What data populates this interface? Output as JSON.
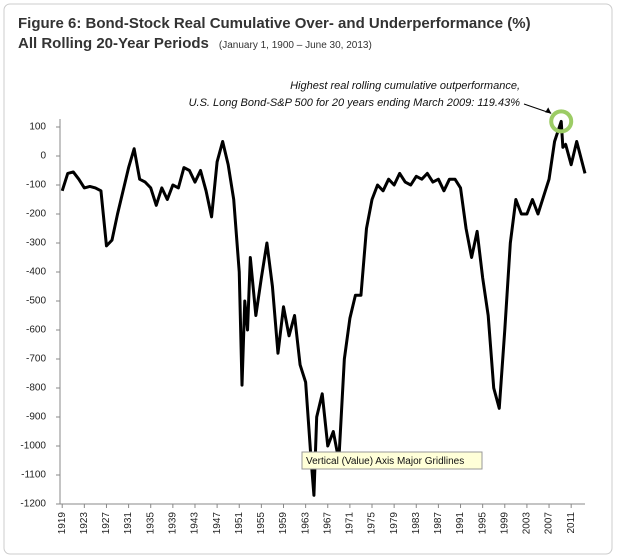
{
  "chart_data": {
    "type": "line",
    "title": "Figure 6: Bond-Stock Real Cumulative Over- and Underperformance (%)",
    "title_line2": "All Rolling 20-Year Periods",
    "subtitle": "(January 1, 1900 – June 30, 2013)",
    "annotation": [
      "Highest real rolling cumulative outperformance,",
      "U.S. Long Bond-S&P 500 for 20 years ending March 2009: 119.43%"
    ],
    "tooltip": "Vertical (Value) Axis Major Gridlines",
    "color": "#000000",
    "highlight_color": "#9ccc65",
    "x": [
      1919,
      1920,
      1921,
      1922,
      1923,
      1924,
      1925,
      1926,
      1927,
      1928,
      1929,
      1930,
      1931,
      1932,
      1933,
      1934,
      1935,
      1936,
      1937,
      1938,
      1939,
      1940,
      1941,
      1942,
      1943,
      1944,
      1945,
      1946,
      1947,
      1948,
      1949,
      1950,
      1951,
      1951.5,
      1952,
      1952.5,
      1953,
      1954,
      1955,
      1956,
      1957,
      1958,
      1959,
      1960,
      1961,
      1962,
      1963,
      1964,
      1964.5,
      1965,
      1966,
      1967,
      1968,
      1969,
      1970,
      1971,
      1972,
      1973,
      1974,
      1975,
      1976,
      1977,
      1978,
      1979,
      1980,
      1981,
      1982,
      1983,
      1984,
      1985,
      1986,
      1987,
      1988,
      1989,
      1990,
      1991,
      1992,
      1993,
      1994,
      1995,
      1996,
      1997,
      1998,
      1999,
      2000,
      2001,
      2002,
      2003,
      2004,
      2005,
      2006,
      2007,
      2008,
      2009.2,
      2009.5,
      2010,
      2011,
      2012,
      2013.5
    ],
    "values": [
      -120,
      -60,
      -55,
      -80,
      -110,
      -105,
      -110,
      -120,
      -310,
      -290,
      -200,
      -120,
      -40,
      25,
      -80,
      -90,
      -110,
      -170,
      -110,
      -150,
      -100,
      -110,
      -40,
      -50,
      -90,
      -50,
      -120,
      -210,
      -20,
      50,
      -30,
      -150,
      -400,
      -790,
      -500,
      -600,
      -350,
      -550,
      -420,
      -300,
      -450,
      -680,
      -520,
      -620,
      -550,
      -720,
      -780,
      -1050,
      -1170,
      -900,
      -820,
      -1000,
      -950,
      -1050,
      -700,
      -560,
      -480,
      -480,
      -250,
      -150,
      -100,
      -120,
      -80,
      -100,
      -60,
      -90,
      -100,
      -70,
      -80,
      -60,
      -90,
      -80,
      -120,
      -80,
      -80,
      -110,
      -250,
      -350,
      -260,
      -420,
      -550,
      -800,
      -870,
      -600,
      -300,
      -150,
      -200,
      -200,
      -150,
      -200,
      -140,
      -80,
      50,
      119.43,
      30,
      40,
      -30,
      50,
      -60
    ],
    "highlight_index": 93,
    "xlim": [
      1918.6,
      2013.5
    ],
    "xticks": [
      1919,
      1923,
      1927,
      1931,
      1935,
      1939,
      1943,
      1947,
      1951,
      1955,
      1959,
      1963,
      1967,
      1971,
      1975,
      1979,
      1983,
      1987,
      1991,
      1995,
      1999,
      2003,
      2007,
      2011
    ],
    "ylim": [
      -1200,
      100
    ],
    "yticks": [
      100,
      0,
      -100,
      -200,
      -300,
      -400,
      -500,
      -600,
      -700,
      -800,
      -900,
      -1000,
      -1100,
      -1200
    ],
    "grid": false
  }
}
